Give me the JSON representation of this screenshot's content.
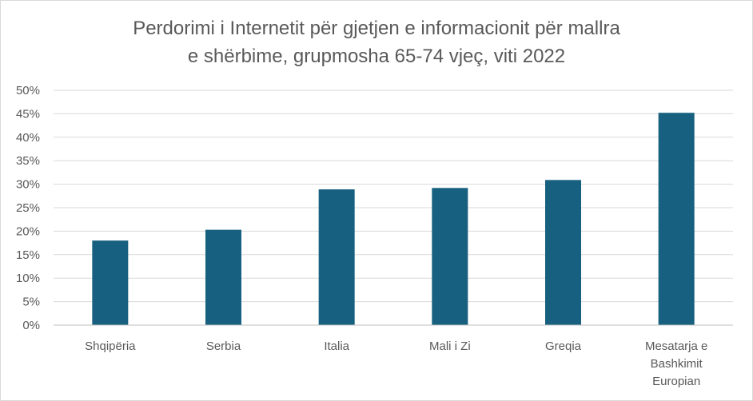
{
  "chart_data": {
    "type": "bar",
    "title_lines": [
      "Perdorimi i Internetit për gjetjen e informacionit për mallra",
      "e shërbime, grupmosha 65-74 vjeç, viti 2022"
    ],
    "categories": [
      [
        "Shqipëria"
      ],
      [
        "Serbia"
      ],
      [
        "Italia"
      ],
      [
        "Mali i Zi"
      ],
      [
        "Greqia"
      ],
      [
        "Mesatarja e",
        "Bashkimit",
        "Europian"
      ]
    ],
    "values": [
      18,
      20.3,
      28.9,
      29.2,
      30.9,
      45.2
    ],
    "y_ticks": [
      "0%",
      "5%",
      "10%",
      "15%",
      "20%",
      "25%",
      "30%",
      "35%",
      "40%",
      "45%",
      "50%"
    ],
    "ylim": [
      0,
      50
    ],
    "y_unit": "%",
    "grid": true,
    "bar_color": "#17607F",
    "grid_color": "#d9d9d9",
    "axis_color": "#bfbfbf"
  }
}
